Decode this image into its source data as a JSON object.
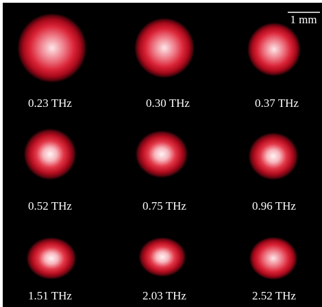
{
  "scale_bar": {
    "label": "1 mm"
  },
  "panels": [
    {
      "label": "0.23 THz"
    },
    {
      "label": "0.30 THz"
    },
    {
      "label": "0.37 THz"
    },
    {
      "label": "0.52 THz"
    },
    {
      "label": "0.75 THz"
    },
    {
      "label": "0.96 THz"
    },
    {
      "label": "1.51 THz"
    },
    {
      "label": "2.03 THz"
    },
    {
      "label": "2.52 THz"
    }
  ]
}
